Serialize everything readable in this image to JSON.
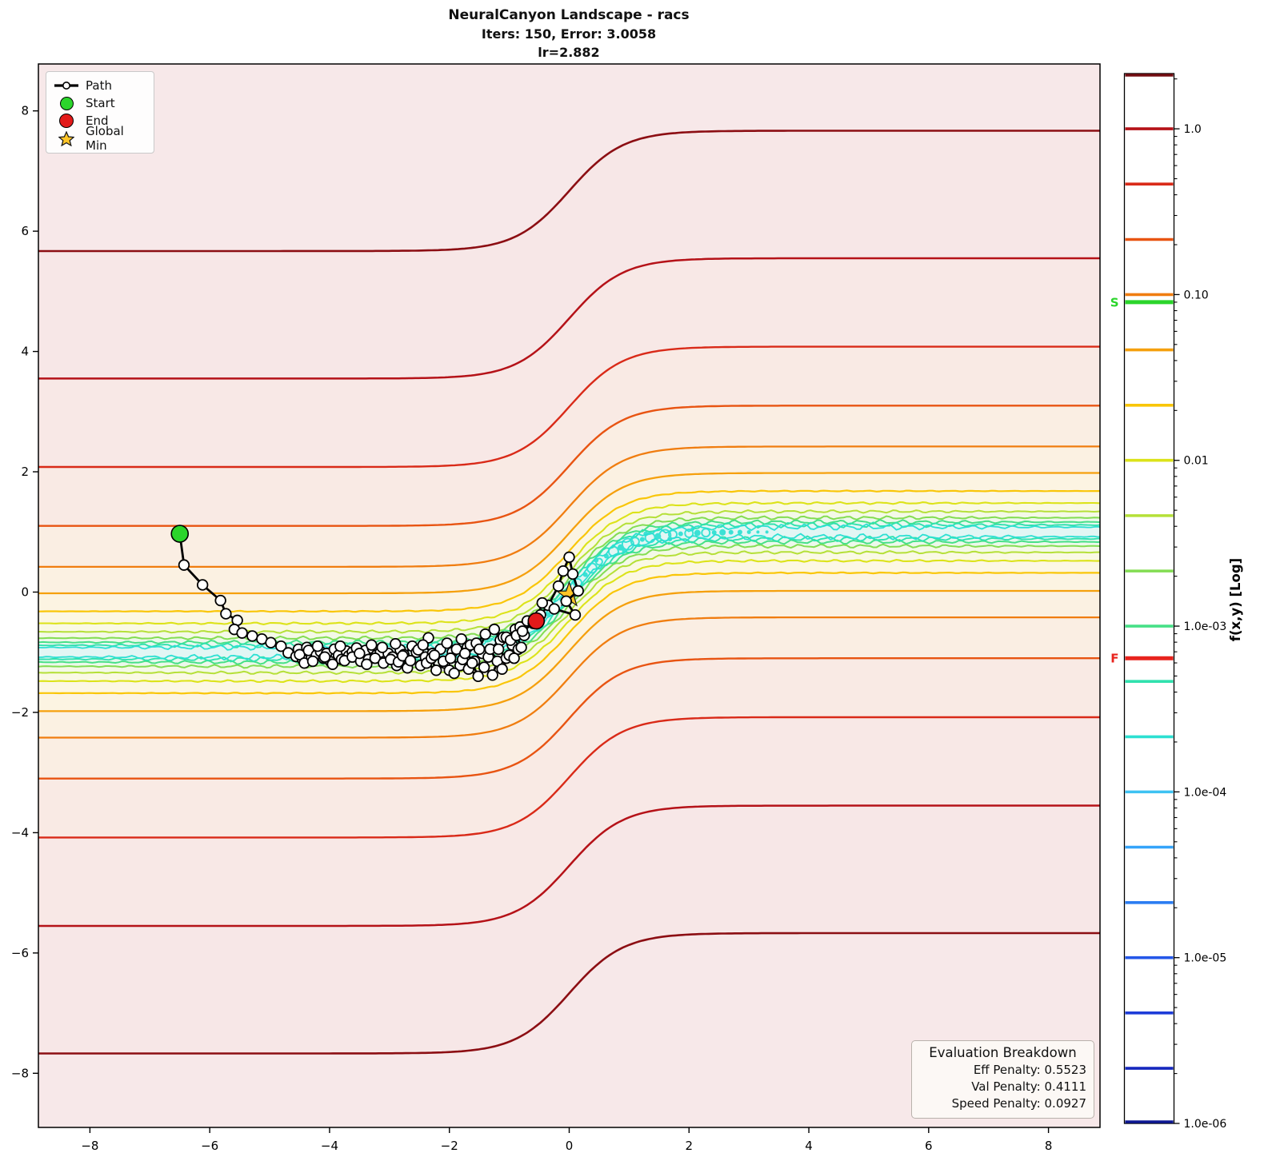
{
  "title": {
    "line1": "NeuralCanyon Landscape - racs",
    "line2": "Iters: 150, Error: 3.0058",
    "line3": "lr=2.882"
  },
  "legend": {
    "items": [
      {
        "label": "Path",
        "type": "path-line",
        "color": "#000000"
      },
      {
        "label": "Start",
        "type": "circle",
        "color": "#2bd52b"
      },
      {
        "label": "End",
        "type": "circle",
        "color": "#e31a1a"
      },
      {
        "label": "Global Min",
        "type": "star",
        "color": "#ffc527"
      }
    ]
  },
  "eval_box": {
    "title": "Evaluation Breakdown",
    "entries": [
      "Eff Penalty: 0.5523",
      "Val Penalty: 0.4111",
      "Speed Penalty: 0.0927"
    ]
  },
  "chart_data": {
    "type": "contour",
    "title": "NeuralCanyon Landscape - racs",
    "subtitle": "Iters: 150, Error: 3.0058",
    "lr_text": "lr=2.882",
    "xlabel": "",
    "ylabel": "",
    "xlim": [
      -8.86,
      8.86
    ],
    "ylim": [
      -8.9,
      8.78
    ],
    "x_ticks": [
      -8,
      -6,
      -4,
      -2,
      0,
      2,
      4,
      6,
      8
    ],
    "y_ticks": [
      -8,
      -6,
      -4,
      -2,
      0,
      2,
      4,
      6,
      8
    ],
    "grid": false,
    "legend": [
      "Path",
      "Start",
      "End",
      "Global Min"
    ],
    "canyon": {
      "amplitude": 1.0,
      "width": 0.9,
      "x0": 0.0
    },
    "base_fill": "#f7e8e9",
    "fill_bands": [
      {
        "max_offset": 6.67,
        "color": "#f7e7e7"
      },
      {
        "max_offset": 4.55,
        "color": "#f8e8e6"
      },
      {
        "max_offset": 3.08,
        "color": "#f9eae4"
      },
      {
        "max_offset": 2.1,
        "color": "#faeee3"
      },
      {
        "max_offset": 1.42,
        "color": "#fbf1e2"
      },
      {
        "max_offset": 0.98,
        "color": "#fcf4e2"
      },
      {
        "max_offset": 0.68,
        "color": "#fcf7e3"
      },
      {
        "max_offset": 0.48,
        "color": "#faf9e4"
      },
      {
        "max_offset": 0.34,
        "color": "#f4f9e7"
      },
      {
        "max_offset": 0.235,
        "color": "#edf8eb"
      },
      {
        "max_offset": 0.165,
        "color": "#e8f8f0"
      },
      {
        "max_offset": 0.115,
        "color": "#e5f7f3"
      },
      {
        "max_offset": 0.08,
        "color": "#e2f6f4"
      }
    ],
    "contour_levels": [
      {
        "level": 2.154,
        "offset": 6.67,
        "color": "#8c0e13",
        "width": 2.6,
        "wavy": 0
      },
      {
        "level": 1.0,
        "offset": 4.55,
        "color": "#b51218",
        "width": 2.5,
        "wavy": 0
      },
      {
        "level": 0.464,
        "offset": 3.08,
        "color": "#d92a18",
        "width": 2.4,
        "wavy": 0
      },
      {
        "level": 0.215,
        "offset": 2.1,
        "color": "#e85412",
        "width": 2.4,
        "wavy": 0
      },
      {
        "level": 0.1,
        "offset": 1.42,
        "color": "#f07d10",
        "width": 2.3,
        "wavy": 0
      },
      {
        "level": 0.0464,
        "offset": 0.98,
        "color": "#f5a00d",
        "width": 2.3,
        "wavy": 0
      },
      {
        "level": 0.0215,
        "offset": 0.68,
        "color": "#f9c608",
        "width": 2.2,
        "wavy": 0.006
      },
      {
        "level": 0.01,
        "offset": 0.48,
        "color": "#dce31a",
        "width": 2.1,
        "wavy": 0.012
      },
      {
        "level": 0.00464,
        "offset": 0.34,
        "color": "#b5e038",
        "width": 2.0,
        "wavy": 0.016
      },
      {
        "level": 0.00215,
        "offset": 0.235,
        "color": "#83dd52",
        "width": 2.0,
        "wavy": 0.02
      },
      {
        "level": 0.001,
        "offset": 0.165,
        "color": "#47e087",
        "width": 2.0,
        "wavy": 0.025
      },
      {
        "level": 0.000464,
        "offset": 0.115,
        "color": "#30e1ae",
        "width": 1.9,
        "wavy": 0.03
      },
      {
        "level": 0.000215,
        "offset": 0.08,
        "color": "#2ce0d2",
        "width": 1.8,
        "wavy": 0.034
      }
    ],
    "beads": {
      "color": "#2adfd2",
      "items": [
        [
          -2.6,
          2,
          1
        ],
        [
          -2.3,
          2,
          1
        ],
        [
          -2.05,
          2,
          1
        ],
        [
          -0.35,
          3,
          1
        ],
        [
          -0.22,
          2,
          1
        ],
        [
          -0.1,
          4,
          0
        ],
        [
          0.02,
          3,
          1
        ],
        [
          0.14,
          5,
          0
        ],
        [
          0.27,
          3,
          1
        ],
        [
          0.38,
          6,
          0
        ],
        [
          0.45,
          3,
          1,
          0.07
        ],
        [
          0.5,
          4,
          0
        ],
        [
          0.62,
          3,
          1
        ],
        [
          0.74,
          6,
          0
        ],
        [
          0.86,
          4,
          1
        ],
        [
          0.92,
          3,
          1,
          -0.08
        ],
        [
          0.98,
          7,
          0
        ],
        [
          1.1,
          5,
          0
        ],
        [
          1.22,
          3,
          1
        ],
        [
          1.28,
          3,
          1,
          0.08
        ],
        [
          1.35,
          6,
          0
        ],
        [
          1.48,
          4,
          1
        ],
        [
          1.6,
          7,
          0
        ],
        [
          1.68,
          3,
          1,
          -0.07
        ],
        [
          1.73,
          5,
          0
        ],
        [
          1.86,
          3,
          1
        ],
        [
          2.0,
          5,
          0
        ],
        [
          2.06,
          2.5,
          1,
          0.07
        ],
        [
          2.14,
          4,
          1
        ],
        [
          2.28,
          5,
          0
        ],
        [
          2.42,
          3,
          1
        ],
        [
          2.56,
          4,
          1
        ],
        [
          2.7,
          3,
          1
        ],
        [
          2.85,
          3,
          1
        ],
        [
          3.0,
          2.5,
          1
        ],
        [
          3.15,
          2,
          1
        ],
        [
          3.3,
          2,
          1
        ]
      ]
    },
    "path": {
      "color": "#000000",
      "marker_fill": "#ffffff",
      "points": [
        [
          -6.5,
          0.97
        ],
        [
          -6.43,
          0.45
        ],
        [
          -6.12,
          0.12
        ],
        [
          -5.82,
          -0.14
        ],
        [
          -5.73,
          -0.36
        ],
        [
          -5.54,
          -0.47
        ],
        [
          -5.59,
          -0.62
        ],
        [
          -5.46,
          -0.68
        ],
        [
          -5.29,
          -0.73
        ],
        [
          -5.13,
          -0.78
        ],
        [
          -4.98,
          -0.84
        ],
        [
          -4.81,
          -0.9
        ],
        [
          -4.69,
          -1.01
        ],
        [
          -4.56,
          -1.07
        ],
        [
          -4.52,
          -0.95
        ],
        [
          -4.45,
          -1.12
        ],
        [
          -4.5,
          -1.04
        ],
        [
          -4.38,
          -0.92
        ],
        [
          -4.42,
          -1.18
        ],
        [
          -4.3,
          -1.08
        ],
        [
          -4.35,
          -0.97
        ],
        [
          -4.22,
          -1.05
        ],
        [
          -4.28,
          -1.15
        ],
        [
          -4.15,
          -0.99
        ],
        [
          -4.2,
          -0.9
        ],
        [
          -4.1,
          -1.1
        ],
        [
          -4.05,
          -1.02
        ],
        [
          -3.98,
          -1.16
        ],
        [
          -4.08,
          -1.08
        ],
        [
          -3.92,
          -0.95
        ],
        [
          -3.85,
          -1.05
        ],
        [
          -3.95,
          -1.2
        ],
        [
          -3.8,
          -1.12
        ],
        [
          -3.72,
          -0.98
        ],
        [
          -3.82,
          -0.9
        ],
        [
          -3.68,
          -1.06
        ],
        [
          -3.75,
          -1.14
        ],
        [
          -3.62,
          -1.0
        ],
        [
          -3.55,
          -0.93
        ],
        [
          -3.62,
          -1.08
        ],
        [
          -3.48,
          -1.15
        ],
        [
          -3.4,
          -0.97
        ],
        [
          -3.5,
          -1.02
        ],
        [
          -3.35,
          -1.12
        ],
        [
          -3.28,
          -0.94
        ],
        [
          -3.38,
          -1.2
        ],
        [
          -3.22,
          -1.05
        ],
        [
          -3.3,
          -0.88
        ],
        [
          -3.15,
          -1.0
        ],
        [
          -3.24,
          -1.1
        ],
        [
          -3.1,
          -1.18
        ],
        [
          -3.02,
          -1.02
        ],
        [
          -3.12,
          -0.92
        ],
        [
          -2.95,
          -1.08
        ],
        [
          -2.88,
          -1.22
        ],
        [
          -2.98,
          -1.12
        ],
        [
          -2.82,
          -0.96
        ],
        [
          -2.9,
          -0.86
        ],
        [
          -2.76,
          -1.04
        ],
        [
          -2.85,
          -1.16
        ],
        [
          -2.7,
          -1.26
        ],
        [
          -2.78,
          -1.06
        ],
        [
          -2.62,
          -0.9
        ],
        [
          -2.55,
          -1.0
        ],
        [
          -2.65,
          -1.14
        ],
        [
          -2.48,
          -1.22
        ],
        [
          -2.4,
          -1.08
        ],
        [
          -2.52,
          -0.96
        ],
        [
          -2.35,
          -0.76
        ],
        [
          -2.44,
          -0.88
        ],
        [
          -2.28,
          -1.02
        ],
        [
          -2.38,
          -1.18
        ],
        [
          -2.22,
          -1.3
        ],
        [
          -2.3,
          -1.1
        ],
        [
          -2.15,
          -0.95
        ],
        [
          -2.25,
          -1.05
        ],
        [
          -2.08,
          -1.18
        ],
        [
          -2.0,
          -1.3
        ],
        [
          -2.1,
          -1.15
        ],
        [
          -1.95,
          -1.0
        ],
        [
          -2.04,
          -0.85
        ],
        [
          -1.88,
          -0.95
        ],
        [
          -1.98,
          -1.1
        ],
        [
          -1.82,
          -1.22
        ],
        [
          -1.92,
          -1.35
        ],
        [
          -1.78,
          -1.12
        ],
        [
          -1.7,
          -0.92
        ],
        [
          -1.8,
          -0.78
        ],
        [
          -1.65,
          -0.88
        ],
        [
          -1.74,
          -1.02
        ],
        [
          -1.58,
          -1.15
        ],
        [
          -1.68,
          -1.28
        ],
        [
          -1.52,
          -1.4
        ],
        [
          -1.62,
          -1.18
        ],
        [
          -1.45,
          -1.02
        ],
        [
          -1.55,
          -0.85
        ],
        [
          -1.4,
          -0.7
        ],
        [
          -1.5,
          -0.95
        ],
        [
          -1.35,
          -1.08
        ],
        [
          -1.42,
          -1.25
        ],
        [
          -1.28,
          -1.38
        ],
        [
          -1.2,
          -1.15
        ],
        [
          -1.32,
          -0.95
        ],
        [
          -1.15,
          -0.8
        ],
        [
          -1.25,
          -0.62
        ],
        [
          -1.1,
          -0.75
        ],
        [
          -1.18,
          -0.95
        ],
        [
          -1.05,
          -1.1
        ],
        [
          -1.12,
          -1.28
        ],
        [
          -1.0,
          -1.05
        ],
        [
          -0.95,
          -0.88
        ],
        [
          -1.05,
          -0.75
        ],
        [
          -0.9,
          -0.62
        ],
        [
          -0.98,
          -0.8
        ],
        [
          -0.85,
          -0.95
        ],
        [
          -0.92,
          -1.1
        ],
        [
          -0.8,
          -0.92
        ],
        [
          -0.88,
          -0.72
        ],
        [
          -0.75,
          -0.72
        ],
        [
          -0.82,
          -0.58
        ],
        [
          -0.7,
          -0.48
        ],
        [
          -0.78,
          -0.65
        ],
        [
          -0.6,
          -0.52
        ],
        [
          -0.48,
          -0.38
        ],
        [
          -0.35,
          -0.22
        ],
        [
          -0.18,
          0.1
        ],
        [
          -0.1,
          0.35
        ],
        [
          0.0,
          0.58
        ],
        [
          0.06,
          0.3
        ],
        [
          0.15,
          0.02
        ],
        [
          -0.05,
          -0.15
        ],
        [
          0.1,
          -0.38
        ],
        [
          -0.25,
          -0.28
        ],
        [
          -0.45,
          -0.18
        ],
        [
          -0.55,
          -0.48
        ]
      ]
    },
    "start_point": {
      "xy": [
        -6.5,
        0.97
      ],
      "color": "#2bd52b"
    },
    "end_point": {
      "xy": [
        -0.55,
        -0.48
      ],
      "color": "#e31a1a"
    },
    "global_min": {
      "xy": [
        0.0,
        -0.05
      ],
      "color": "#ffc527"
    },
    "colorbar": {
      "label": "f(x,y) [Log]",
      "log_top": 0.3333,
      "log_bottom": -6,
      "tick_labels": [
        {
          "label": "1.0",
          "value": 1.0
        },
        {
          "label": "0.10",
          "value": 0.1
        },
        {
          "label": "0.01",
          "value": 0.01
        },
        {
          "label": "1.0e-03",
          "value": 0.001
        },
        {
          "label": "1.0e-04",
          "value": 0.0001
        },
        {
          "label": "1.0e-05",
          "value": 1e-05
        },
        {
          "label": "1.0e-06",
          "value": 1e-06
        }
      ],
      "lines": [
        {
          "level": 2.154,
          "color": "#730d12"
        },
        {
          "level": 1.0,
          "color": "#b51218"
        },
        {
          "level": 0.464,
          "color": "#d92a18"
        },
        {
          "level": 0.215,
          "color": "#e85412"
        },
        {
          "level": 0.1,
          "color": "#f07d10"
        },
        {
          "level": 0.0464,
          "color": "#f5a00d"
        },
        {
          "level": 0.0215,
          "color": "#f9c608"
        },
        {
          "level": 0.01,
          "color": "#dce31a"
        },
        {
          "level": 0.00464,
          "color": "#b5e038"
        },
        {
          "level": 0.00215,
          "color": "#83dd52"
        },
        {
          "level": 0.001,
          "color": "#47e087"
        },
        {
          "level": 0.000464,
          "color": "#30e1ae"
        },
        {
          "level": 0.000215,
          "color": "#2ce0d2"
        },
        {
          "level": 0.0001,
          "color": "#3ec2f2"
        },
        {
          "level": 4.64e-05,
          "color": "#35a4fa"
        },
        {
          "level": 2.15e-05,
          "color": "#2b7df2"
        },
        {
          "level": 1e-05,
          "color": "#2457e8"
        },
        {
          "level": 4.64e-06,
          "color": "#1d3cd8"
        },
        {
          "level": 2.15e-06,
          "color": "#1527be"
        },
        {
          "level": 1e-06,
          "color": "#0e1894"
        }
      ],
      "start_marker": {
        "label": "S",
        "value": 0.09,
        "color": "#2bd52b"
      },
      "final_marker": {
        "label": "F",
        "value": 0.00064,
        "color": "#e8231d"
      }
    }
  }
}
